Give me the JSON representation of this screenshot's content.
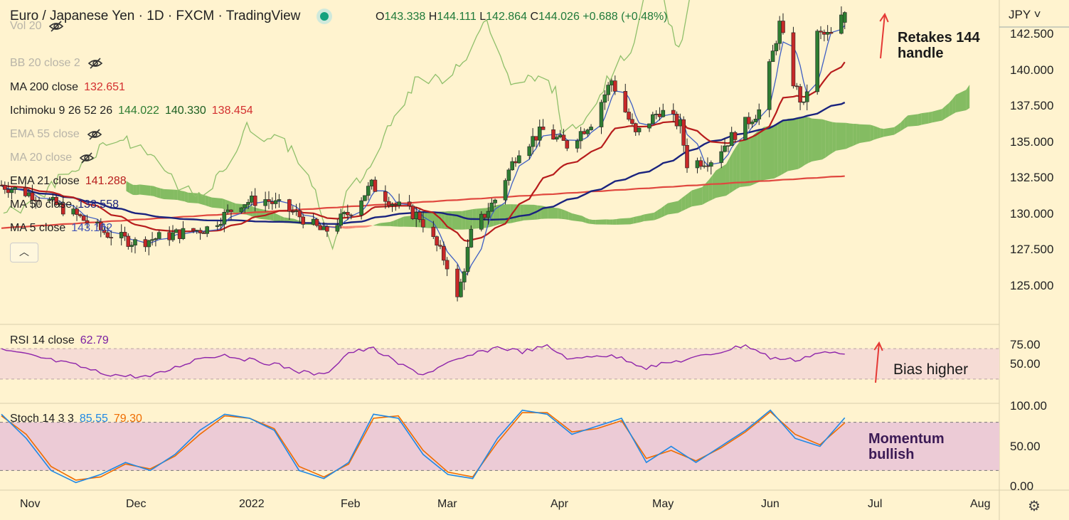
{
  "header": {
    "title": "Euro / Japanese Yen · 1D · FXCM · TradingView",
    "ohlc": {
      "o_label": "O",
      "o": "143.338",
      "h_label": "H",
      "h": "144.111",
      "l_label": "L",
      "l": "142.864",
      "c_label": "C",
      "c": "144.026",
      "chg": "+0.688 (+0.48%)"
    },
    "currency": "JPY"
  },
  "indicators": [
    {
      "label": "Vol 20",
      "hidden": true
    },
    {
      "label": "BB 20 close 2",
      "hidden": true
    },
    {
      "label": "MA 200 close",
      "value": "132.651",
      "color": "#d32f2f"
    },
    {
      "label": "Ichimoku 9 26 52 26",
      "values": [
        "144.022",
        "140.330",
        "138.454"
      ],
      "colors": [
        "#2e7d32",
        "#1b5e20",
        "#d32f2f"
      ]
    },
    {
      "label": "EMA 55 close",
      "hidden": true
    },
    {
      "label": "MA 20 close",
      "hidden": true
    },
    {
      "label": "EMA 21 close",
      "value": "141.288",
      "color": "#b71c1c"
    },
    {
      "label": "MA 50 close",
      "value": "138.558",
      "color": "#1a237e"
    },
    {
      "label": "MA 5 close",
      "value": "143.162",
      "color": "#3f51b5"
    }
  ],
  "annotations": {
    "price": "Retakes 144\nhandle",
    "rsi": "Bias higher",
    "stoch": "Momentum\nbullish"
  },
  "rsi_legend": {
    "label": "RSI 14 close",
    "value": "62.79",
    "color": "#7b1fa2"
  },
  "stoch_legend": {
    "label": "Stoch 14 3 3",
    "k": "85.55",
    "d": "79.30",
    "k_color": "#1e88e5",
    "d_color": "#ef6c00"
  },
  "x_axis": [
    "Nov",
    "Dec",
    "2022",
    "Feb",
    "Mar",
    "Apr",
    "May",
    "Jun",
    "Jul",
    "Aug"
  ],
  "price_axis": [
    "142.500",
    "140.000",
    "137.500",
    "135.000",
    "132.500",
    "130.000",
    "127.500",
    "125.000"
  ],
  "rsi_axis": [
    "75.00",
    "50.00"
  ],
  "stoch_axis": [
    "100.00",
    "50.00",
    "0.00"
  ],
  "colors": {
    "bg": "#fff3cf",
    "up": "#2e7d32",
    "down": "#c62828",
    "arrow": "#e53935",
    "cloud_green": "#5aa83f",
    "cloud_red": "#f36b5f"
  },
  "chart_data": [
    {
      "type": "candlestick",
      "title": "Euro / Japanese Yen · 1D · FXCM",
      "ylim": [
        122.5,
        144.5
      ],
      "x_range": [
        "2021-10-25",
        "2022-08-10"
      ],
      "ohlc_last": {
        "open": 143.338,
        "high": 144.111,
        "low": 142.864,
        "close": 144.026
      },
      "close_path": [
        [
          "2021-10-25",
          132.0
        ],
        [
          "2021-11-05",
          131.2
        ],
        [
          "2021-11-15",
          130.0
        ],
        [
          "2021-11-25",
          128.6
        ],
        [
          "2021-12-03",
          128.0
        ],
        [
          "2021-12-15",
          128.6
        ],
        [
          "2021-12-24",
          129.0
        ],
        [
          "2022-01-03",
          130.8
        ],
        [
          "2022-01-10",
          131.0
        ],
        [
          "2022-01-19",
          130.0
        ],
        [
          "2022-01-27",
          128.7
        ],
        [
          "2022-02-03",
          130.0
        ],
        [
          "2022-02-10",
          132.0
        ],
        [
          "2022-02-17",
          130.6
        ],
        [
          "2022-02-24",
          129.8
        ],
        [
          "2022-03-04",
          126.5
        ],
        [
          "2022-03-07",
          124.0
        ],
        [
          "2022-03-11",
          128.6
        ],
        [
          "2022-03-18",
          131.0
        ],
        [
          "2022-03-25",
          134.5
        ],
        [
          "2022-04-01",
          135.8
        ],
        [
          "2022-04-08",
          134.8
        ],
        [
          "2022-04-15",
          136.4
        ],
        [
          "2022-04-21",
          139.3
        ],
        [
          "2022-04-28",
          135.5
        ],
        [
          "2022-05-05",
          137.2
        ],
        [
          "2022-05-11",
          136.2
        ],
        [
          "2022-05-13",
          133.5
        ],
        [
          "2022-05-20",
          133.8
        ],
        [
          "2022-05-27",
          135.6
        ],
        [
          "2022-06-03",
          137.2
        ],
        [
          "2022-06-09",
          143.2
        ],
        [
          "2022-06-13",
          139.2
        ],
        [
          "2022-06-16",
          137.4
        ],
        [
          "2022-06-20",
          142.5
        ],
        [
          "2022-06-24",
          142.4
        ],
        [
          "2022-06-28",
          144.0
        ]
      ],
      "ema21_last": 141.288,
      "ma50_last": 138.558,
      "ma200_last": 132.651,
      "ma5_last": 143.162
    },
    {
      "type": "line",
      "title": "RSI 14 close",
      "ylim": [
        0,
        100
      ],
      "levels": [
        70,
        30
      ],
      "series": [
        {
          "name": "RSI 14 close",
          "values": [
            68,
            62,
            55,
            48,
            38,
            34,
            33,
            45,
            58,
            62,
            55,
            50,
            40,
            35,
            65,
            70,
            50,
            36,
            50,
            62,
            72,
            66,
            73,
            55,
            62,
            58,
            45,
            52,
            58,
            66,
            75,
            58,
            55,
            65,
            62.79
          ]
        }
      ]
    },
    {
      "type": "line",
      "title": "Stoch 14 3 3",
      "ylim": [
        0,
        100
      ],
      "levels": [
        80,
        20
      ],
      "series": [
        {
          "name": "%K",
          "values": [
            90,
            60,
            20,
            5,
            15,
            30,
            20,
            40,
            70,
            90,
            85,
            70,
            20,
            10,
            30,
            90,
            85,
            40,
            15,
            10,
            60,
            95,
            90,
            65,
            75,
            85,
            30,
            50,
            30,
            50,
            70,
            95,
            60,
            50,
            85.55
          ]
        },
        {
          "name": "%D",
          "values": [
            88,
            65,
            25,
            8,
            12,
            28,
            22,
            38,
            65,
            88,
            85,
            72,
            25,
            12,
            28,
            85,
            88,
            45,
            18,
            12,
            55,
            92,
            92,
            68,
            72,
            82,
            35,
            45,
            32,
            48,
            68,
            93,
            65,
            52,
            79.3
          ]
        }
      ]
    }
  ]
}
